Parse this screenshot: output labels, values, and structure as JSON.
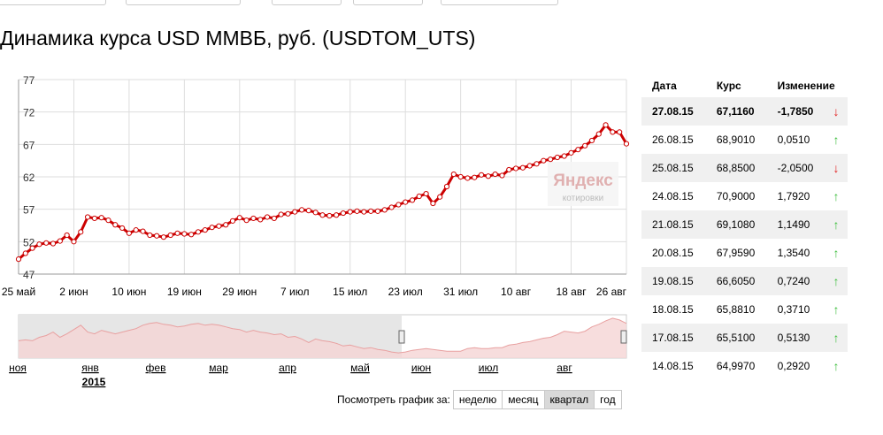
{
  "title": "Динамика курса USD ММВБ, руб. (USDTOM_UTS)",
  "watermark": {
    "brand": "Яндекс",
    "sub": "котировки"
  },
  "colors": {
    "line": "#cc0000",
    "grid": "#dddddd",
    "nav_fill": "#f5d5d5",
    "nav_line": "#e8a0a0",
    "nav_shade": "#e6e6e6"
  },
  "chart_data": {
    "type": "line",
    "title": "Динамика курса USD ММВБ, руб. (USDTOM_UTS)",
    "ylim": [
      47,
      77
    ],
    "y_ticks": [
      47,
      52,
      57,
      62,
      67,
      72,
      77
    ],
    "x_tick_labels": [
      "25 май",
      "2 июн",
      "10 июн",
      "19 июн",
      "29 июн",
      "7 июл",
      "15 июл",
      "23 июл",
      "31 июл",
      "10 авг",
      "18 авг",
      "26 авг"
    ],
    "series": [
      {
        "values": [
          49.3,
          50.2,
          51.0,
          51.6,
          51.8,
          51.7,
          52.1,
          53.0,
          52.0,
          53.5,
          55.8,
          55.6,
          55.7,
          55.3,
          54.6,
          54.1,
          53.3,
          53.8,
          53.6,
          53.0,
          52.9,
          52.7,
          53.0,
          53.3,
          53.2,
          53.1,
          53.5,
          53.8,
          54.2,
          54.4,
          54.6,
          55.2,
          55.7,
          55.3,
          55.6,
          55.4,
          55.8,
          55.6,
          56.2,
          56.3,
          56.6,
          56.9,
          56.8,
          56.5,
          56.1,
          56.0,
          56.1,
          56.4,
          56.6,
          56.7,
          56.6,
          56.7,
          56.7,
          56.9,
          57.3,
          57.7,
          58.1,
          58.4,
          59.0,
          59.4,
          57.9,
          58.9,
          60.5,
          62.4,
          62.0,
          61.8,
          61.9,
          62.3,
          62.1,
          62.4,
          62.2,
          63.1,
          63.3,
          63.4,
          63.7,
          64.0,
          64.5,
          64.7,
          65.0,
          65.2,
          65.7,
          66.2,
          66.8,
          67.6,
          68.6,
          70.0,
          68.9,
          68.9,
          67.1
        ]
      }
    ]
  },
  "navigator": {
    "tick_labels": [
      "ноя",
      "янв",
      "фев",
      "мар",
      "апр",
      "май",
      "июн",
      "июл",
      "авг"
    ],
    "year_label": "2015",
    "values": [
      57,
      57.5,
      57,
      59,
      60,
      62,
      59,
      61,
      63.5,
      66,
      62,
      61,
      63,
      62,
      61,
      62,
      63,
      64,
      66,
      67,
      67.5,
      66.5,
      66,
      65,
      65.5,
      66.5,
      67,
      66,
      66.5,
      66,
      65,
      64,
      63.5,
      62,
      63,
      62,
      61.5,
      60.5,
      61,
      59,
      59.5,
      58,
      56,
      58,
      57,
      56.5,
      55.5,
      54,
      54.5,
      53.5,
      52.5,
      53,
      52,
      51.5,
      50.5,
      50,
      50.5,
      51.5,
      52,
      52.5,
      52,
      51.5,
      51,
      51,
      51,
      52.5,
      53,
      52.5,
      52.5,
      53,
      53,
      54.5,
      55,
      56,
      56.5,
      57.5,
      58.5,
      59,
      60.5,
      62.5,
      62,
      61.5,
      62.5,
      65,
      66.5,
      68.5,
      70,
      69,
      67
    ],
    "ylim": [
      47,
      72
    ]
  },
  "table": {
    "headers": {
      "date": "Дата",
      "rate": "Курс",
      "change": "Изменение"
    },
    "rows": [
      {
        "date": "27.08.15",
        "rate": "67,1160",
        "change": "-1,7850",
        "dir": "down",
        "arrow": "↓"
      },
      {
        "date": "26.08.15",
        "rate": "68,9010",
        "change": "0,0510",
        "dir": "up",
        "arrow": "↑"
      },
      {
        "date": "25.08.15",
        "rate": "68,8500",
        "change": "-2,0500",
        "dir": "down",
        "arrow": "↓"
      },
      {
        "date": "24.08.15",
        "rate": "70,9000",
        "change": "1,7920",
        "dir": "up",
        "arrow": "↑"
      },
      {
        "date": "21.08.15",
        "rate": "69,1080",
        "change": "1,1490",
        "dir": "up",
        "arrow": "↑"
      },
      {
        "date": "20.08.15",
        "rate": "67,9590",
        "change": "1,3540",
        "dir": "up",
        "arrow": "↑"
      },
      {
        "date": "19.08.15",
        "rate": "66,6050",
        "change": "0,7240",
        "dir": "up",
        "arrow": "↑"
      },
      {
        "date": "18.08.15",
        "rate": "65,8810",
        "change": "0,3710",
        "dir": "up",
        "arrow": "↑"
      },
      {
        "date": "17.08.15",
        "rate": "65,5100",
        "change": "0,5130",
        "dir": "up",
        "arrow": "↑"
      },
      {
        "date": "14.08.15",
        "rate": "64,9970",
        "change": "0,2920",
        "dir": "up",
        "arrow": "↑"
      }
    ]
  },
  "period": {
    "label": "Посмотреть график за:",
    "options": [
      "неделю",
      "месяц",
      "квартал",
      "год"
    ],
    "active": "квартал"
  }
}
